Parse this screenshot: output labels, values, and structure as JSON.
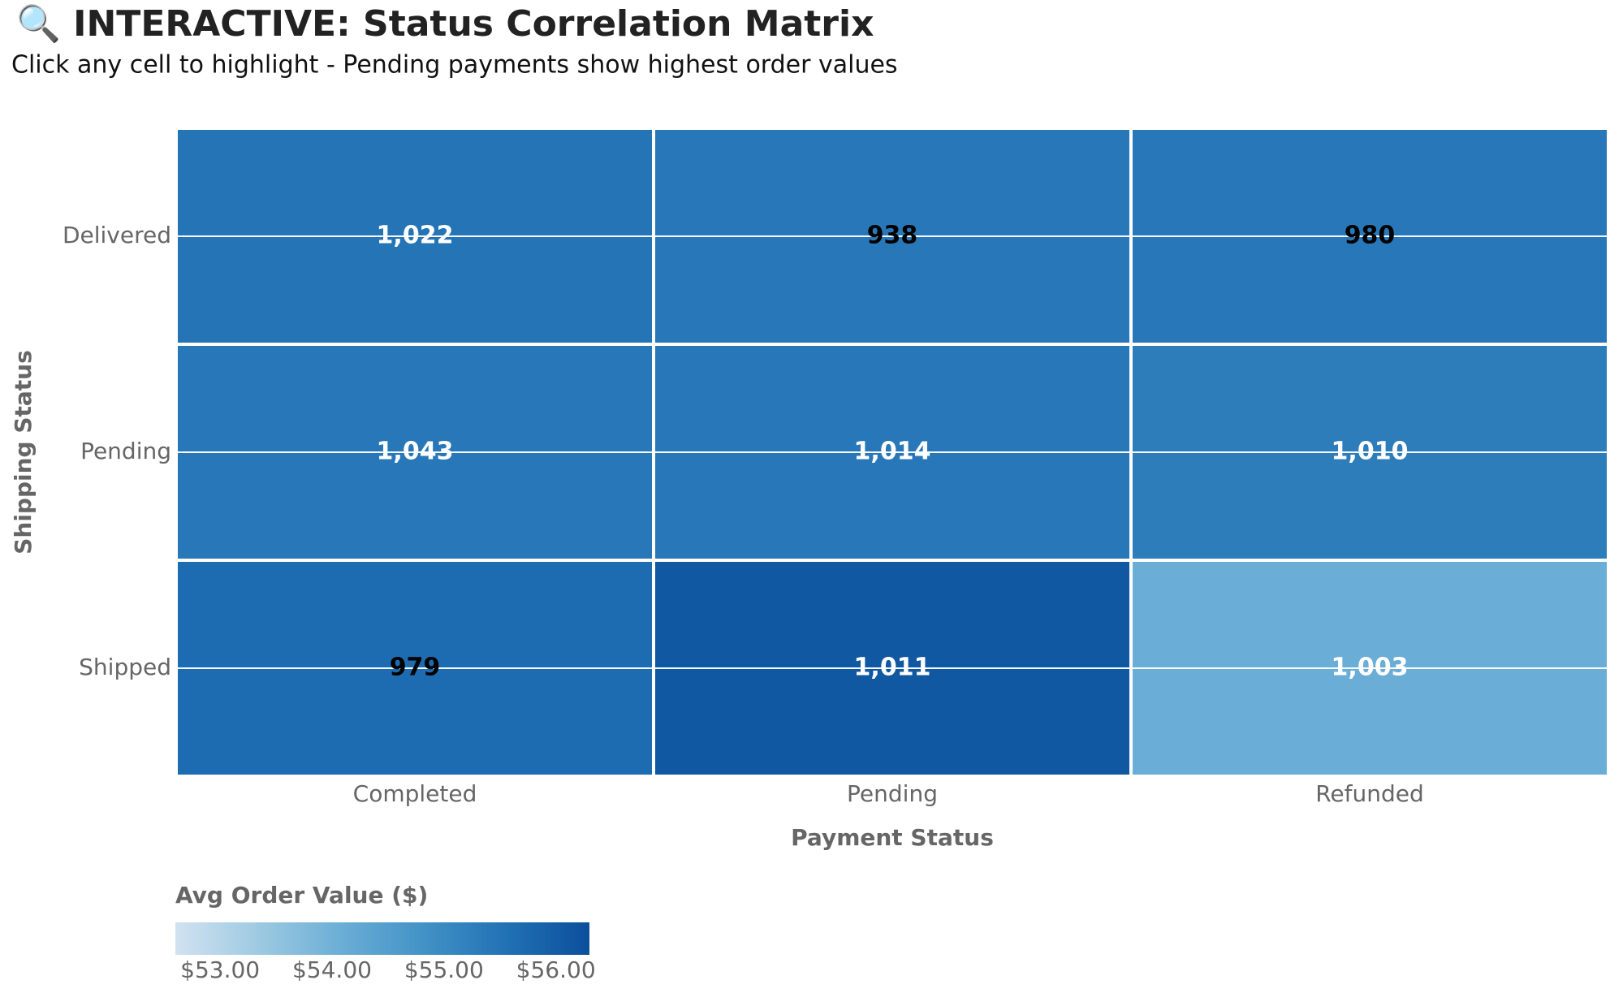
{
  "chart_data": {
    "type": "heatmap",
    "title": "🔍 INTERACTIVE: Status Correlation Matrix",
    "subtitle": "Click any cell to highlight - Pending payments show highest order values",
    "x_label": "Payment Status",
    "y_label": "Shipping Status",
    "x": [
      "Completed",
      "Pending",
      "Refunded"
    ],
    "y": [
      "Delivered",
      "Pending",
      "Shipped"
    ],
    "z": [
      [
        55.5,
        55.4,
        55.4
      ],
      [
        55.4,
        55.4,
        55.3
      ],
      [
        55.7,
        56.1,
        54.1
      ]
    ],
    "cell_text": [
      [
        "1,022",
        "938",
        "980"
      ],
      [
        "1,043",
        "1,014",
        "1,010"
      ],
      [
        "979",
        "1,011",
        "1,003"
      ]
    ],
    "text_colors": [
      [
        "#ffffff",
        "#000000",
        "#000000"
      ],
      [
        "#ffffff",
        "#ffffff",
        "#ffffff"
      ],
      [
        "#000000",
        "#ffffff",
        "#ffffff"
      ]
    ],
    "colorscale": [
      "#d1e2f2",
      "#9ecae1",
      "#6baed6",
      "#4292c6",
      "#2171b5",
      "#0b4f9b"
    ],
    "colorbar_title": "Avg Order Value ($)",
    "clim": [
      52.6,
      56.3
    ],
    "cticks": [
      {
        "value": 53,
        "label": "$53.00"
      },
      {
        "value": 54,
        "label": "$54.00"
      },
      {
        "value": 55,
        "label": "$55.00"
      },
      {
        "value": 56,
        "label": "$56.00"
      }
    ],
    "grid": true
  }
}
